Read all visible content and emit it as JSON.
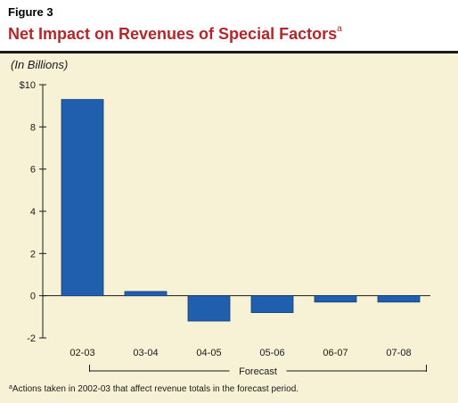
{
  "figure": {
    "label": "Figure 3",
    "title": "Net Impact on Revenues of Special Factors",
    "title_footnote_marker": "a"
  },
  "units_label": "(In Billions)",
  "footnote": {
    "marker": "a",
    "text": "Actions taken in 2002-03 that affect revenue totals in the forecast period."
  },
  "colors": {
    "bar": "#1f5fad",
    "bar_edge": "#123f7a",
    "title": "#b3272a",
    "background": "#f7f2d6"
  },
  "chart_data": {
    "type": "bar",
    "title": "Net Impact on Revenues of Special Factors",
    "ylabel": "(In Billions)",
    "categories": [
      "02-03",
      "03-04",
      "04-05",
      "05-06",
      "06-07",
      "07-08"
    ],
    "values": [
      9.3,
      0.2,
      -1.2,
      -0.8,
      -0.3,
      -0.3
    ],
    "ylim": [
      -2,
      10
    ],
    "yticks": [
      -2,
      0,
      2,
      4,
      6,
      8,
      10
    ],
    "ytick_labels": [
      "-2",
      "0",
      "2",
      "4",
      "6",
      "8",
      "$10"
    ],
    "grid": false,
    "bracket": {
      "label": "Forecast",
      "from_category": "03-04",
      "to_category": "07-08"
    }
  }
}
